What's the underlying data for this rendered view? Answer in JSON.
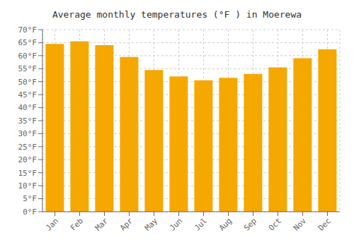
{
  "chart_data": {
    "type": "bar",
    "title": "Average monthly temperatures (°F ) in Moerewa",
    "categories": [
      "Jan",
      "Feb",
      "Mar",
      "Apr",
      "May",
      "Jun",
      "Jul",
      "Aug",
      "Sep",
      "Oct",
      "Nov",
      "Dec"
    ],
    "values": [
      64.5,
      65.5,
      64.0,
      59.5,
      54.5,
      52.0,
      50.5,
      51.5,
      53.0,
      55.5,
      59.0,
      62.5
    ],
    "color": "#F5A800",
    "ylim": [
      0,
      70
    ],
    "yticks": [
      {
        "value": 0,
        "label": "0°F"
      },
      {
        "value": 5,
        "label": "5°F"
      },
      {
        "value": 10,
        "label": "10°F"
      },
      {
        "value": 15,
        "label": "15°F"
      },
      {
        "value": 20,
        "label": "20°F"
      },
      {
        "value": 25,
        "label": "25°F"
      },
      {
        "value": 30,
        "label": "30°F"
      },
      {
        "value": 35,
        "label": "35°F"
      },
      {
        "value": 40,
        "label": "40°F"
      },
      {
        "value": 45,
        "label": "45°F"
      },
      {
        "value": 50,
        "label": "50°F"
      },
      {
        "value": 55,
        "label": "55°F"
      },
      {
        "value": 60,
        "label": "60°F"
      },
      {
        "value": 65,
        "label": "65°F"
      },
      {
        "value": 70,
        "label": "70°F"
      }
    ],
    "grid": true
  }
}
